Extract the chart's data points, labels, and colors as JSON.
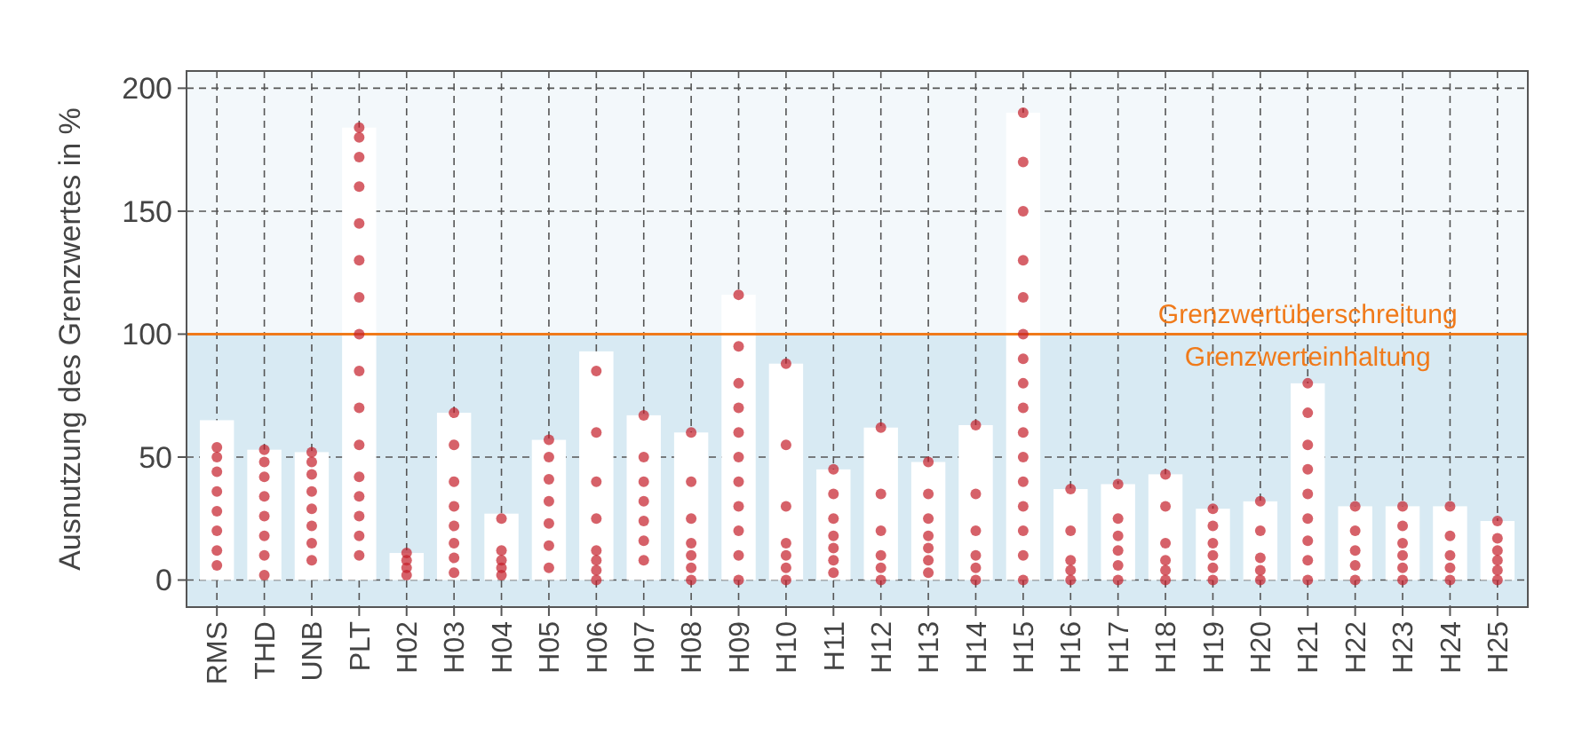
{
  "chart_data": {
    "type": "bar",
    "ylabel": "Ausnutzung des Grenzwertes in %",
    "categories": [
      "RMS",
      "THD",
      "UNB",
      "PLT",
      "H02",
      "H03",
      "H04",
      "H05",
      "H06",
      "H07",
      "H08",
      "H09",
      "H10",
      "H11",
      "H12",
      "H13",
      "H14",
      "H15",
      "H16",
      "H17",
      "H18",
      "H19",
      "H20",
      "H21",
      "H22",
      "H23",
      "H24",
      "H25"
    ],
    "series": [
      {
        "color": "#ffffff",
        "values": [
          65,
          53,
          52,
          184,
          11,
          68,
          27,
          57,
          93,
          67,
          60,
          116,
          88,
          45,
          62,
          48,
          63,
          190,
          37,
          39,
          43,
          29,
          32,
          80,
          30,
          30,
          30,
          24
        ]
      },
      {
        "type": "scatter",
        "color": "#c41e2a",
        "x": [
          "RMS",
          "RMS",
          "RMS",
          "RMS",
          "RMS",
          "RMS",
          "RMS",
          "RMS",
          "THD",
          "THD",
          "THD",
          "THD",
          "THD",
          "THD",
          "THD",
          "THD",
          "UNB",
          "UNB",
          "UNB",
          "UNB",
          "UNB",
          "UNB",
          "UNB",
          "UNB",
          "PLT",
          "PLT",
          "PLT",
          "PLT",
          "PLT",
          "PLT",
          "PLT",
          "PLT",
          "PLT",
          "PLT",
          "PLT",
          "PLT",
          "PLT",
          "PLT",
          "PLT",
          "PLT",
          "H02",
          "H02",
          "H02",
          "H02",
          "H03",
          "H03",
          "H03",
          "H03",
          "H03",
          "H03",
          "H03",
          "H03",
          "H04",
          "H04",
          "H04",
          "H04",
          "H04",
          "H05",
          "H05",
          "H05",
          "H05",
          "H05",
          "H05",
          "H05",
          "H06",
          "H06",
          "H06",
          "H06",
          "H06",
          "H06",
          "H06",
          "H06",
          "H07",
          "H07",
          "H07",
          "H07",
          "H07",
          "H07",
          "H07",
          "H08",
          "H08",
          "H08",
          "H08",
          "H08",
          "H08",
          "H08",
          "H09",
          "H09",
          "H09",
          "H09",
          "H09",
          "H09",
          "H09",
          "H09",
          "H09",
          "H09",
          "H09",
          "H10",
          "H10",
          "H10",
          "H10",
          "H10",
          "H10",
          "H10",
          "H11",
          "H11",
          "H11",
          "H11",
          "H11",
          "H11",
          "H11",
          "H12",
          "H12",
          "H12",
          "H12",
          "H12",
          "H12",
          "H13",
          "H13",
          "H13",
          "H13",
          "H13",
          "H13",
          "H13",
          "H14",
          "H14",
          "H14",
          "H14",
          "H14",
          "H14",
          "H15",
          "H15",
          "H15",
          "H15",
          "H15",
          "H15",
          "H15",
          "H15",
          "H15",
          "H15",
          "H15",
          "H15",
          "H15",
          "H15",
          "H15",
          "H15",
          "H16",
          "H16",
          "H16",
          "H16",
          "H16",
          "H17",
          "H17",
          "H17",
          "H17",
          "H17",
          "H17",
          "H18",
          "H18",
          "H18",
          "H18",
          "H18",
          "H18",
          "H19",
          "H19",
          "H19",
          "H19",
          "H19",
          "H19",
          "H20",
          "H20",
          "H20",
          "H20",
          "H20",
          "H21",
          "H21",
          "H21",
          "H21",
          "H21",
          "H21",
          "H21",
          "H21",
          "H21",
          "H22",
          "H22",
          "H22",
          "H22",
          "H22",
          "H23",
          "H23",
          "H23",
          "H23",
          "H23",
          "H23",
          "H24",
          "H24",
          "H24",
          "H24",
          "H24",
          "H25",
          "H25",
          "H25",
          "H25",
          "H25",
          "H25"
        ],
        "values": [
          6,
          12,
          20,
          28,
          36,
          44,
          50,
          54,
          2,
          10,
          18,
          26,
          34,
          42,
          48,
          53,
          8,
          15,
          22,
          29,
          36,
          43,
          48,
          52,
          10,
          18,
          26,
          34,
          42,
          55,
          70,
          85,
          100,
          115,
          130,
          145,
          160,
          172,
          180,
          184,
          2,
          5,
          8,
          11,
          3,
          9,
          15,
          22,
          30,
          40,
          55,
          68,
          2,
          5,
          8,
          12,
          25,
          5,
          14,
          23,
          32,
          41,
          50,
          57,
          0,
          4,
          8,
          12,
          25,
          40,
          60,
          85,
          8,
          16,
          24,
          32,
          40,
          50,
          67,
          0,
          5,
          10,
          15,
          25,
          40,
          60,
          0,
          10,
          20,
          30,
          40,
          50,
          60,
          70,
          80,
          95,
          116,
          0,
          5,
          10,
          15,
          30,
          55,
          88,
          3,
          8,
          13,
          18,
          25,
          35,
          45,
          0,
          5,
          10,
          20,
          35,
          62,
          3,
          8,
          13,
          18,
          25,
          35,
          48,
          0,
          5,
          10,
          20,
          35,
          63,
          0,
          10,
          20,
          30,
          40,
          50,
          60,
          70,
          80,
          90,
          100,
          115,
          130,
          150,
          170,
          190,
          0,
          4,
          8,
          20,
          37,
          0,
          6,
          12,
          18,
          25,
          39,
          0,
          4,
          8,
          15,
          30,
          43,
          0,
          5,
          10,
          15,
          22,
          29,
          0,
          4,
          9,
          20,
          32,
          0,
          8,
          16,
          25,
          35,
          45,
          55,
          68,
          80,
          0,
          6,
          12,
          20,
          30,
          0,
          5,
          10,
          15,
          22,
          30,
          0,
          5,
          10,
          18,
          30,
          0,
          4,
          8,
          12,
          17,
          24
        ]
      }
    ],
    "ylim": [
      -11,
      207
    ],
    "yticks": [
      0,
      50,
      100,
      150,
      200
    ],
    "grid": true,
    "line_style": "dashed",
    "ref_lines": [
      {
        "axis": "y",
        "value": 100,
        "color": "#f07a1a"
      }
    ],
    "bands": [
      {
        "axis": "y",
        "from": -11,
        "to": 100,
        "color": "#d8eaf3"
      }
    ],
    "annotations": [
      {
        "text": "Grenzwertüberschreitung",
        "y": 100
      },
      {
        "text": "Grenzwerteinhaltung",
        "y": 100
      }
    ]
  }
}
